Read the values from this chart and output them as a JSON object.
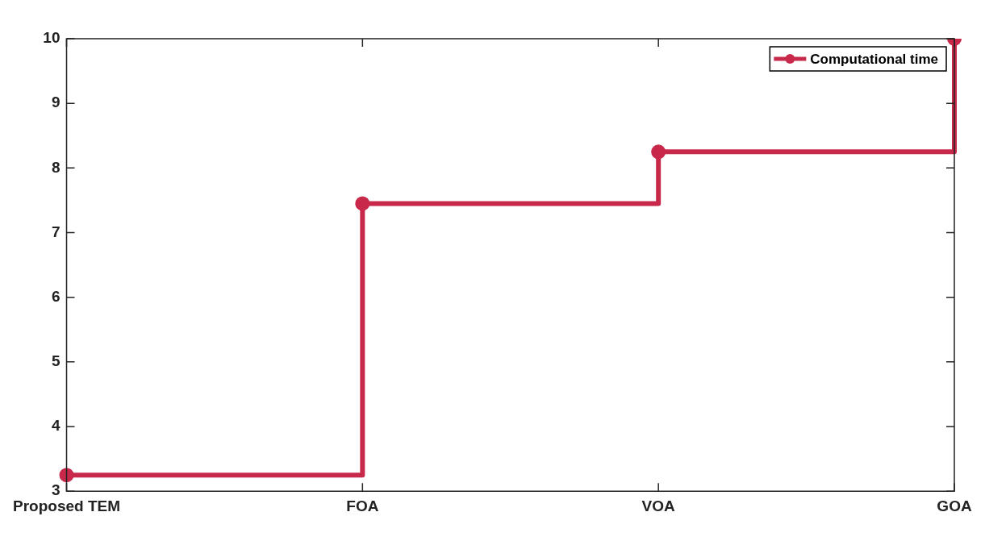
{
  "chart_data": {
    "type": "step",
    "categories": [
      "Proposed TEM",
      "FOA",
      "VOA",
      "GOA"
    ],
    "series": [
      {
        "name": "Computational time",
        "color": "#c8284a",
        "values": [
          3.25,
          7.45,
          8.25,
          10
        ]
      }
    ],
    "ylim": [
      3,
      10
    ],
    "yticks": [
      3,
      4,
      5,
      6,
      7,
      8,
      9,
      10
    ],
    "grid": false,
    "legend": "top right",
    "marker": "circle",
    "line_style": "solid"
  }
}
